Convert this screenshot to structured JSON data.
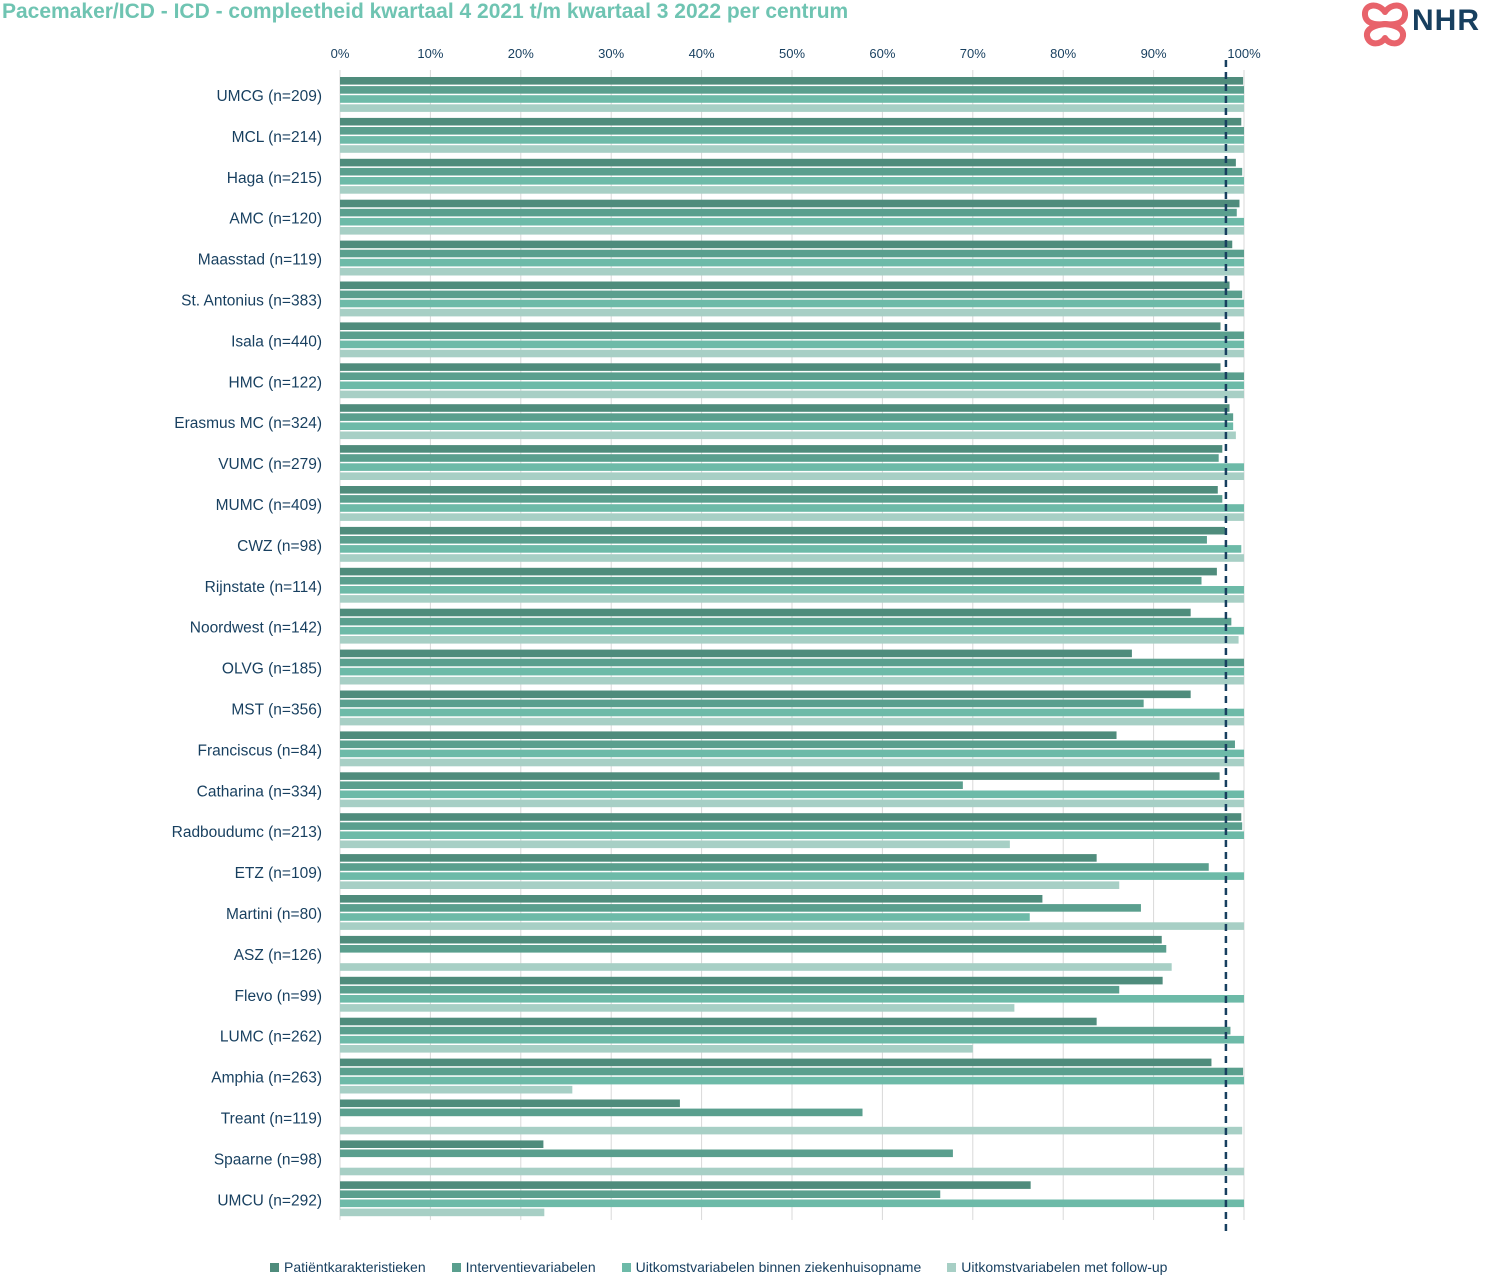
{
  "title": "Pacemaker/ICD - ICD - compleetheid kwartaal 4 2021 t/m kwartaal 3 2022 per centrum",
  "logo": {
    "text": "NHR",
    "icon": "nhr-heart-logo-icon",
    "color": "#e8636b"
  },
  "chart_data": {
    "type": "bar",
    "orientation": "horizontal",
    "title": "Pacemaker/ICD - ICD - compleetheid kwartaal 4 2021 t/m kwartaal 3 2022 per centrum",
    "xlim": [
      0,
      100
    ],
    "x_ticks": [
      "0%",
      "10%",
      "20%",
      "30%",
      "40%",
      "50%",
      "60%",
      "70%",
      "80%",
      "90%",
      "100%"
    ],
    "grid": "vertical",
    "legend_position": "bottom",
    "reference_line": {
      "value": 98,
      "style": "dashed",
      "color": "#173f5f"
    },
    "categories": [
      "UMCG (n=209)",
      "MCL (n=214)",
      "Haga (n=215)",
      "AMC (n=120)",
      "Maasstad (n=119)",
      "St. Antonius (n=383)",
      "Isala (n=440)",
      "HMC (n=122)",
      "Erasmus MC (n=324)",
      "VUMC (n=279)",
      "MUMC (n=409)",
      "CWZ (n=98)",
      "Rijnstate (n=114)",
      "Noordwest (n=142)",
      "OLVG (n=185)",
      "MST (n=356)",
      "Franciscus (n=84)",
      "Catharina (n=334)",
      "Radboudumc (n=213)",
      "ETZ (n=109)",
      "Martini (n=80)",
      "ASZ (n=126)",
      "Flevo (n=99)",
      "LUMC (n=262)",
      "Amphia (n=263)",
      "Treant (n=119)",
      "Spaarne (n=98)",
      "UMCU (n=292)"
    ],
    "series": [
      {
        "name": "Patiëntkarakteristieken",
        "color": "#4f8c7c",
        "values": [
          99.9,
          99.7,
          99.1,
          99.5,
          98.7,
          98.4,
          97.4,
          97.4,
          98.4,
          97.6,
          97.1,
          97.9,
          97.0,
          94.1,
          87.6,
          94.1,
          85.9,
          97.3,
          99.7,
          83.7,
          77.7,
          90.9,
          91.0,
          83.7,
          96.4,
          37.6,
          22.5,
          76.4
        ]
      },
      {
        "name": "Interventievariabelen",
        "color": "#5a9f8e",
        "values": [
          100,
          100,
          99.8,
          99.2,
          100,
          99.8,
          100,
          100,
          98.8,
          97.2,
          97.6,
          95.9,
          95.3,
          98.6,
          100,
          88.9,
          99.0,
          68.9,
          99.8,
          96.1,
          88.6,
          91.4,
          86.2,
          98.5,
          99.9,
          57.8,
          67.8,
          66.4
        ]
      },
      {
        "name": "Uitkomstvariabelen binnen ziekenhuisopname",
        "color": "#6dbaa8",
        "values": [
          100,
          100,
          100,
          100,
          100,
          100,
          100,
          100,
          98.8,
          100,
          100,
          99.7,
          100,
          100,
          100,
          100,
          100,
          100,
          100,
          100,
          76.3,
          0,
          100,
          100,
          100,
          0,
          0,
          100
        ]
      },
      {
        "name": "Uitkomstvariabelen met follow-up",
        "color": "#a7cfc5",
        "values": [
          100,
          100,
          100,
          100,
          100,
          100,
          100,
          100,
          99.1,
          100,
          100,
          100,
          100,
          99.4,
          100,
          100,
          100,
          100,
          74.1,
          86.2,
          100,
          92.0,
          74.6,
          70.0,
          25.7,
          99.8,
          100,
          22.6
        ]
      }
    ]
  }
}
